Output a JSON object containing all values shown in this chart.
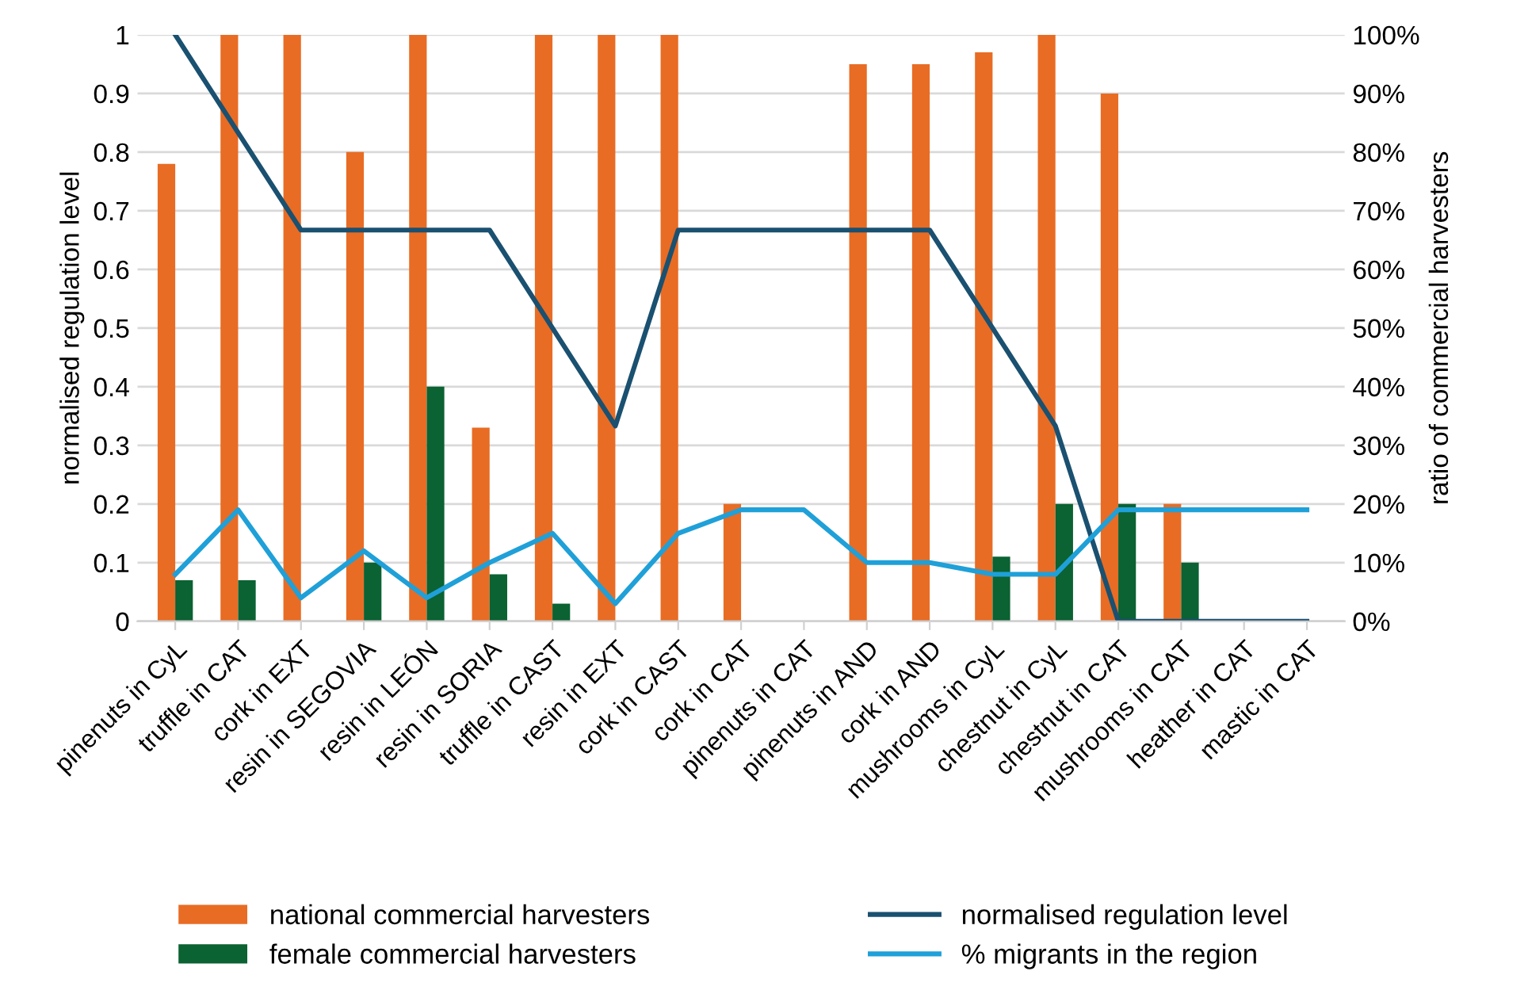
{
  "chart_data": {
    "type": "bar",
    "ylabel": "normalised regulation level",
    "y2label": "ratio of commercial harvesters",
    "categories": [
      "pinenuts in CyL",
      "truffle in CAT",
      "cork in EXT",
      "resin in SEGOVIA",
      "resin in LEÓN",
      "resin in SORIA",
      "truffle in CAST",
      "resin in EXT",
      "cork in CAST",
      "cork in CAT",
      "pinenuts in CAT",
      "pinenuts in AND",
      "cork in AND",
      "mushrooms in CyL",
      "chestnut in CyL",
      "chestnut in CAT",
      "mushrooms in CAT",
      "heather in CAT",
      "mastic in CAT"
    ],
    "series": [
      {
        "name": "national commercial harvesters",
        "color": "#e86c24",
        "values": [
          0.78,
          1,
          1,
          0.8,
          1,
          0.33,
          1,
          1,
          1,
          0.2,
          null,
          0.95,
          0.95,
          0.97,
          1,
          0.9,
          0.2,
          null,
          null
        ]
      },
      {
        "name": "female commercial harvesters",
        "color": "#0b6232",
        "values": [
          0.07,
          0.07,
          null,
          0.1,
          0.4,
          0.08,
          0.03,
          null,
          null,
          null,
          null,
          null,
          null,
          0.11,
          0.2,
          0.2,
          0.1,
          null,
          null
        ]
      },
      {
        "name": "normalised regulation level",
        "type": "line",
        "color": "#1a5070",
        "values": [
          1,
          0.833,
          0.667,
          0.667,
          0.667,
          0.667,
          0.5,
          0.333,
          0.667,
          0.667,
          0.667,
          0.667,
          0.667,
          0.5,
          0.333,
          0,
          0,
          0,
          0
        ]
      },
      {
        "name": "% migrants in the region",
        "type": "line",
        "axis": "y2",
        "color": "#1fa0d8",
        "values": [
          8,
          19,
          4,
          12,
          4,
          10,
          15,
          3,
          15,
          19,
          19,
          10,
          10,
          8,
          8,
          19,
          19,
          19,
          19
        ]
      }
    ],
    "ylim": [
      0,
      1
    ],
    "yticks": [
      0,
      0.1,
      0.2,
      0.3,
      0.4,
      0.5,
      0.6,
      0.7,
      0.8,
      0.9,
      1
    ],
    "y2lim": [
      0,
      100
    ],
    "y2ticks": [
      {
        "value": 0,
        "label": "0%"
      },
      {
        "value": 10,
        "label": "10%"
      },
      {
        "value": 20,
        "label": "20%"
      },
      {
        "value": 30,
        "label": "30%"
      },
      {
        "value": 40,
        "label": "40%"
      },
      {
        "value": 50,
        "label": "50%"
      },
      {
        "value": 60,
        "label": "60%"
      },
      {
        "value": 70,
        "label": "70%"
      },
      {
        "value": 80,
        "label": "80%"
      },
      {
        "value": 90,
        "label": "90%"
      },
      {
        "value": 100,
        "label": "100%"
      }
    ],
    "grid": "y",
    "legend": "bottom",
    "marker": "none",
    "line_style": "solid"
  }
}
